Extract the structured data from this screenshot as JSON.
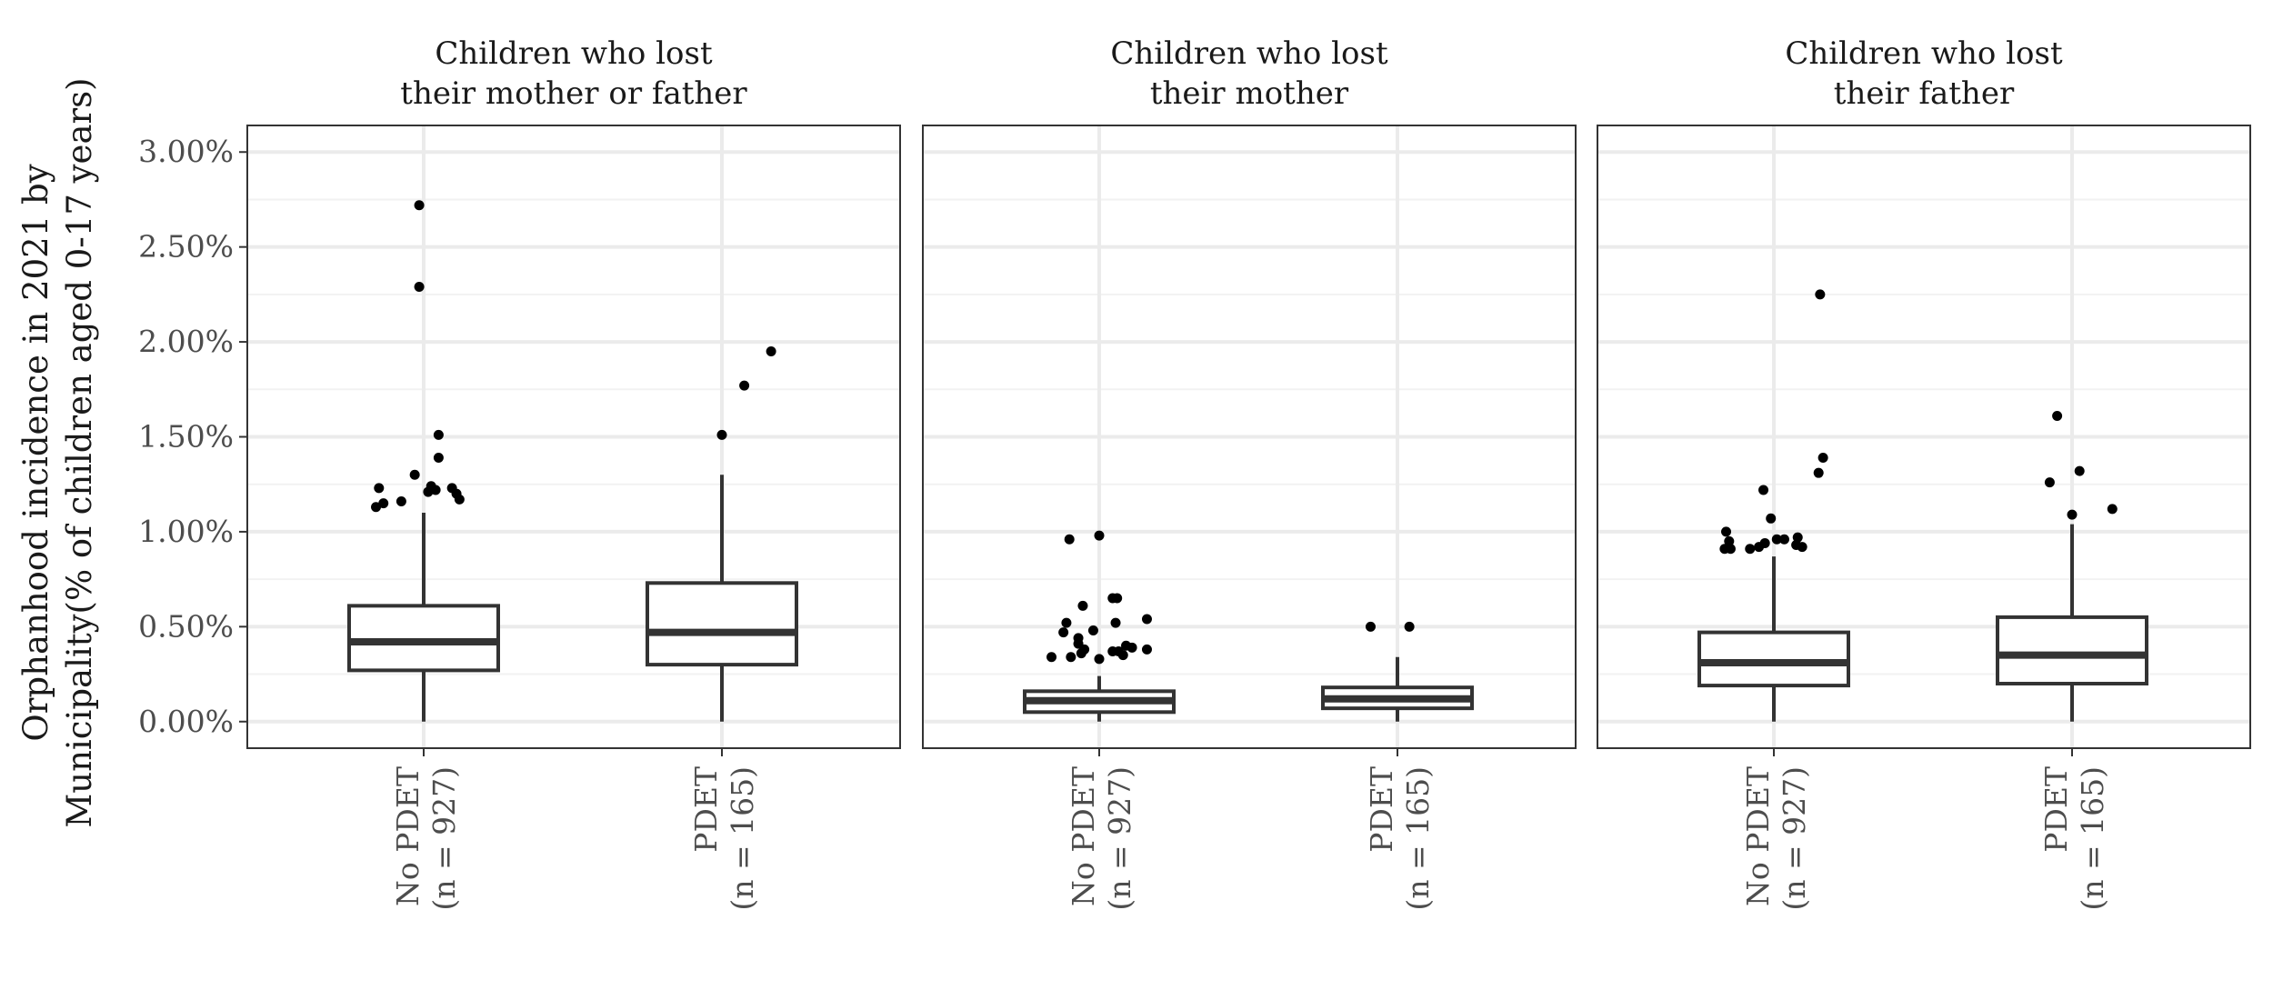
{
  "chart_data": {
    "type": "boxplot",
    "ylabel_lines": [
      "Orphanhood incidence in 2021 by",
      "Municipality(% of children aged 0-17 years)"
    ],
    "ylim": [
      -0.14,
      3.14
    ],
    "y_ticks": [
      0,
      0.5,
      1.0,
      1.5,
      2.0,
      2.5,
      3.0
    ],
    "y_tick_labels": [
      "0.00%",
      "0.50%",
      "1.00%",
      "1.50%",
      "2.00%",
      "2.50%",
      "3.00%"
    ],
    "categories": [
      {
        "line1": "No PDET",
        "line2": "(n = 927)"
      },
      {
        "line1": "PDET",
        "line2": "(n = 165)"
      }
    ],
    "panels": [
      {
        "title_lines": [
          "Children who lost",
          "their mother or father"
        ],
        "boxes": [
          {
            "min": 0.0,
            "q1": 0.27,
            "median": 0.42,
            "q3": 0.61,
            "max": 1.1,
            "outliers": [
              [
                -0.03,
                2.72
              ],
              [
                -0.03,
                2.29
              ],
              [
                0.1,
                1.51
              ],
              [
                0.1,
                1.39
              ],
              [
                -0.06,
                1.3
              ],
              [
                0.19,
                1.23
              ],
              [
                0.22,
                1.2
              ],
              [
                0.05,
                1.24
              ],
              [
                0.08,
                1.22
              ],
              [
                0.24,
                1.17
              ],
              [
                -0.3,
                1.23
              ],
              [
                -0.32,
                1.13
              ],
              [
                -0.27,
                1.15
              ],
              [
                -0.15,
                1.16
              ],
              [
                0.03,
                1.21
              ]
            ]
          },
          {
            "min": 0.0,
            "q1": 0.3,
            "median": 0.47,
            "q3": 0.73,
            "max": 1.3,
            "outliers": [
              [
                0.33,
                1.95
              ],
              [
                0.15,
                1.77
              ],
              [
                0.0,
                1.51
              ]
            ]
          }
        ]
      },
      {
        "title_lines": [
          "Children who lost",
          "their mother"
        ],
        "boxes": [
          {
            "min": 0.0,
            "q1": 0.05,
            "median": 0.11,
            "q3": 0.16,
            "max": 0.24,
            "outliers": [
              [
                0.0,
                0.98
              ],
              [
                -0.2,
                0.96
              ],
              [
                0.12,
                0.65
              ],
              [
                0.09,
                0.65
              ],
              [
                -0.11,
                0.61
              ],
              [
                0.32,
                0.54
              ],
              [
                -0.22,
                0.52
              ],
              [
                0.11,
                0.52
              ],
              [
                -0.24,
                0.47
              ],
              [
                -0.14,
                0.44
              ],
              [
                -0.04,
                0.48
              ],
              [
                -0.14,
                0.41
              ],
              [
                -0.1,
                0.38
              ],
              [
                0.32,
                0.38
              ],
              [
                0.22,
                0.39
              ],
              [
                0.18,
                0.4
              ],
              [
                0.13,
                0.37
              ],
              [
                0.09,
                0.37
              ],
              [
                0.16,
                0.35
              ],
              [
                -0.32,
                0.34
              ],
              [
                -0.19,
                0.34
              ],
              [
                -0.12,
                0.36
              ],
              [
                0.0,
                0.33
              ]
            ]
          },
          {
            "min": 0.0,
            "q1": 0.07,
            "median": 0.12,
            "q3": 0.18,
            "max": 0.34,
            "outliers": [
              [
                -0.18,
                0.5
              ],
              [
                0.08,
                0.5
              ]
            ]
          }
        ]
      },
      {
        "title_lines": [
          "Children who lost",
          "their father"
        ],
        "boxes": [
          {
            "min": 0.0,
            "q1": 0.19,
            "median": 0.31,
            "q3": 0.47,
            "max": 0.87,
            "outliers": [
              [
                0.31,
                2.25
              ],
              [
                0.33,
                1.39
              ],
              [
                0.3,
                1.31
              ],
              [
                -0.07,
                1.22
              ],
              [
                -0.02,
                1.07
              ],
              [
                -0.32,
                1.0
              ],
              [
                -0.3,
                0.95
              ],
              [
                -0.33,
                0.91
              ],
              [
                -0.29,
                0.91
              ],
              [
                -0.16,
                0.91
              ],
              [
                -0.1,
                0.92
              ],
              [
                -0.06,
                0.94
              ],
              [
                0.02,
                0.96
              ],
              [
                0.07,
                0.96
              ],
              [
                0.15,
                0.93
              ],
              [
                0.19,
                0.92
              ],
              [
                0.16,
                0.97
              ]
            ]
          },
          {
            "min": 0.0,
            "q1": 0.2,
            "median": 0.35,
            "q3": 0.55,
            "max": 1.04,
            "outliers": [
              [
                -0.1,
                1.61
              ],
              [
                0.05,
                1.32
              ],
              [
                -0.15,
                1.26
              ],
              [
                0.27,
                1.12
              ],
              [
                0.0,
                1.09
              ]
            ]
          }
        ]
      }
    ],
    "grid": true,
    "legend": "none"
  }
}
